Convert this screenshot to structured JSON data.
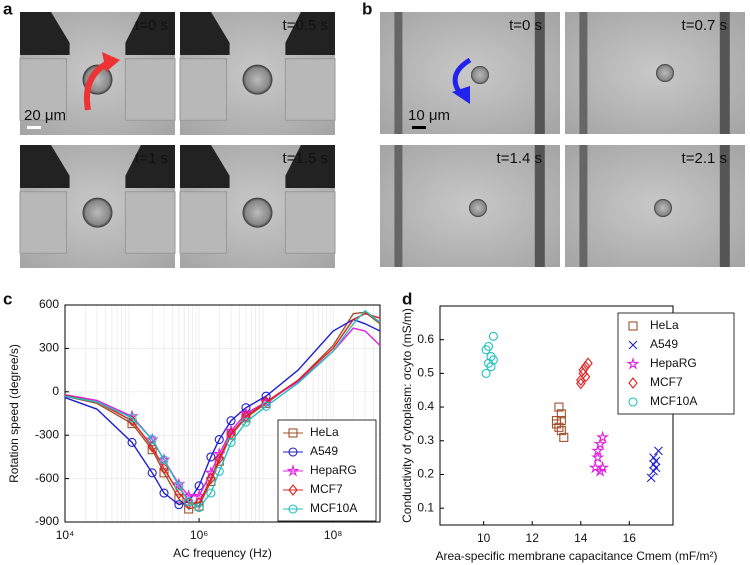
{
  "panels": {
    "a": {
      "label": "a",
      "times": [
        "t=0 s",
        "t=0.5 s",
        "t=1 s",
        "t=1.5 s"
      ],
      "scale_bar": "20 μm"
    },
    "b": {
      "label": "b",
      "times": [
        "t=0 s",
        "t=0.7 s",
        "t=1.4 s",
        "t=2.1 s"
      ],
      "scale_bar": "10 μm"
    }
  },
  "chart_data": [
    {
      "label": "c",
      "type": "line",
      "xlabel": "AC frequency (Hz)",
      "ylabel": "Rotation speed (degree/s)",
      "log_x": true,
      "grid": true,
      "xlim": [
        10000,
        500000000
      ],
      "xticks": [
        {
          "value": 10000,
          "label": "10⁴"
        },
        {
          "value": 1000000,
          "label": "10⁶"
        },
        {
          "value": 100000000,
          "label": "10⁸"
        }
      ],
      "ylim": [
        -900,
        600
      ],
      "yticks": [
        -900,
        -600,
        -300,
        0,
        300,
        600
      ],
      "x": [
        10000,
        30000,
        100000,
        200000,
        300000,
        500000,
        700000,
        1000000,
        1500000,
        2000000,
        3000000,
        5000000,
        10000000,
        30000000,
        100000000,
        200000000,
        300000000,
        500000000
      ],
      "series": [
        {
          "name": "HeLa",
          "color": "#a0522d",
          "marker": "square",
          "values": [
            -30,
            -80,
            -220,
            -400,
            -560,
            -740,
            -810,
            -790,
            -620,
            -480,
            -300,
            -180,
            -80,
            80,
            320,
            540,
            550,
            470
          ]
        },
        {
          "name": "A549",
          "color": "#1f1fd0",
          "marker": "circle",
          "values": [
            -40,
            -120,
            -350,
            -560,
            -700,
            -780,
            -760,
            -650,
            -450,
            -330,
            -200,
            -110,
            -30,
            150,
            420,
            500,
            470,
            420
          ]
        },
        {
          "name": "HepaRG",
          "color": "#e020e0",
          "marker": "star",
          "values": [
            -20,
            -60,
            -170,
            -330,
            -470,
            -640,
            -720,
            -720,
            -560,
            -430,
            -270,
            -150,
            -70,
            70,
            280,
            440,
            420,
            320
          ]
        },
        {
          "name": "MCF7",
          "color": "#e02020",
          "marker": "diamond",
          "values": [
            -25,
            -70,
            -200,
            -380,
            -530,
            -700,
            -770,
            -770,
            -600,
            -460,
            -290,
            -170,
            -70,
            80,
            300,
            500,
            540,
            510
          ]
        },
        {
          "name": "MCF10A",
          "color": "#20c0c0",
          "marker": "circle",
          "values": [
            -30,
            -70,
            -180,
            -330,
            -470,
            -650,
            -760,
            -800,
            -700,
            -550,
            -350,
            -210,
            -100,
            60,
            280,
            470,
            560,
            480
          ]
        }
      ]
    },
    {
      "label": "d",
      "type": "scatter",
      "xlabel": "Area-specific membrane capacitance Cmem (mF/m²)",
      "ylabel": "Conductivity of cytoplasm: σcyto (mS/m)",
      "xlim": [
        8.2,
        17.8
      ],
      "xticks": [
        10,
        12,
        14,
        16
      ],
      "ylim": [
        0.05,
        0.7
      ],
      "yticks": [
        0.1,
        0.2,
        0.3,
        0.4,
        0.5,
        0.6
      ],
      "series": [
        {
          "name": "HeLa",
          "color": "#a0522d",
          "marker": "square",
          "x": [
            13.0,
            13.1,
            13.2,
            13.1,
            13.2,
            13.3,
            13.0,
            13.2
          ],
          "values": [
            0.36,
            0.4,
            0.38,
            0.34,
            0.33,
            0.31,
            0.35,
            0.36
          ]
        },
        {
          "name": "A549",
          "color": "#1f1fd0",
          "marker": "cross",
          "x": [
            17.0,
            17.1,
            17.2,
            16.9,
            17.0,
            17.1,
            17.0
          ],
          "values": [
            0.25,
            0.22,
            0.27,
            0.19,
            0.21,
            0.24,
            0.23
          ]
        },
        {
          "name": "HepaRG",
          "color": "#e020e0",
          "marker": "star",
          "x": [
            14.7,
            14.8,
            14.9,
            14.6,
            14.8,
            14.7,
            14.9
          ],
          "values": [
            0.27,
            0.29,
            0.31,
            0.22,
            0.21,
            0.25,
            0.22
          ]
        },
        {
          "name": "MCF7",
          "color": "#e02020",
          "marker": "diamond",
          "x": [
            14.0,
            14.1,
            14.2,
            14.3,
            14.0,
            14.2,
            14.1
          ],
          "values": [
            0.48,
            0.5,
            0.52,
            0.53,
            0.47,
            0.49,
            0.51
          ]
        },
        {
          "name": "MCF10A",
          "color": "#20c0c0",
          "marker": "circle",
          "x": [
            10.1,
            10.2,
            10.3,
            10.2,
            10.4,
            10.1,
            10.3,
            10.4
          ],
          "values": [
            0.5,
            0.53,
            0.55,
            0.58,
            0.61,
            0.57,
            0.52,
            0.54
          ]
        }
      ]
    }
  ]
}
